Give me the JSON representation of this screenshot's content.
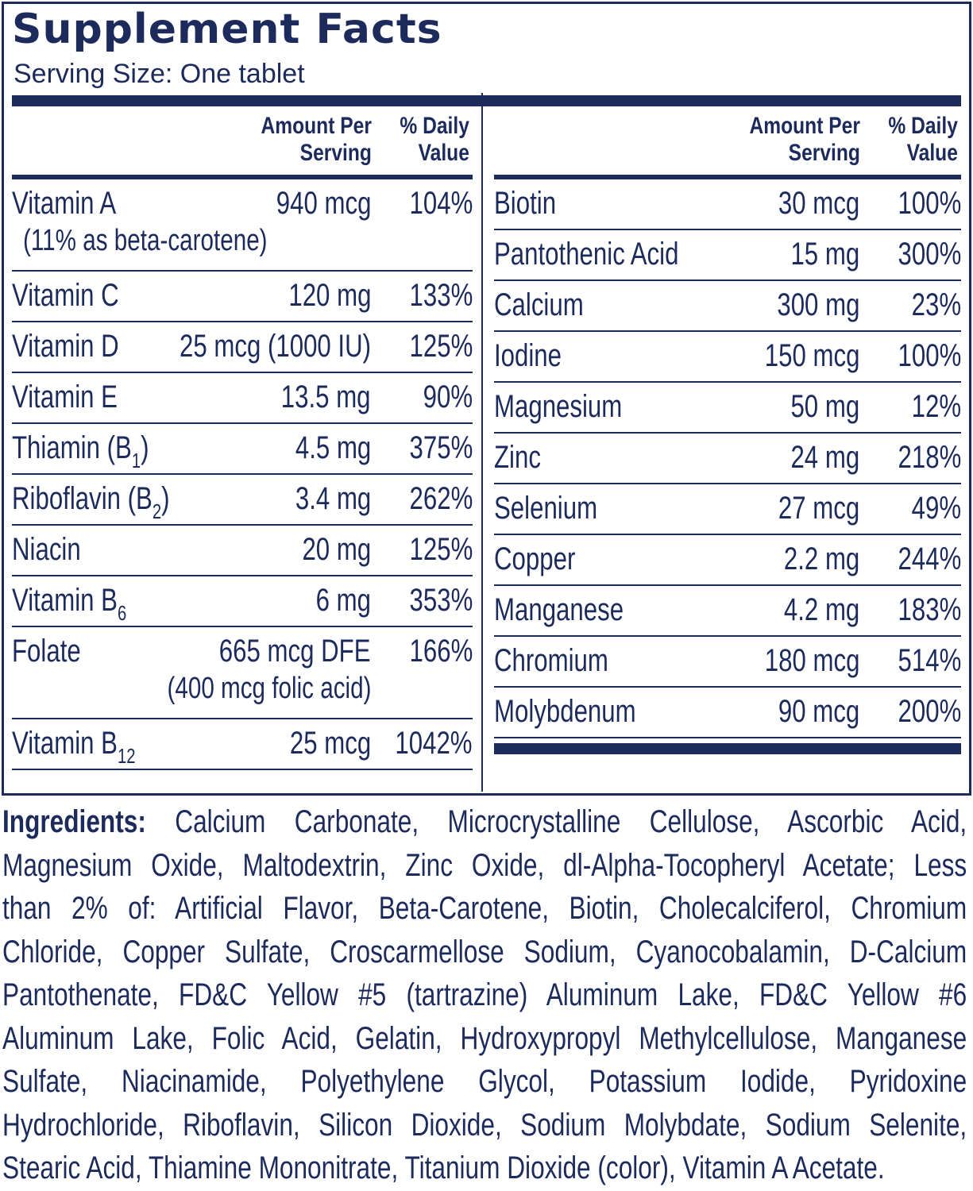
{
  "title": "Supplement Facts",
  "serving_size": "Serving Size:  One tablet",
  "headers": {
    "amount_line1": "Amount Per",
    "amount_line2": "Serving",
    "dv_line1": "% Daily",
    "dv_line2": "Value"
  },
  "left_rows": [
    {
      "name": "Vitamin A",
      "sub": "",
      "amount": "940 mcg",
      "dv": "104%",
      "note": "(11% as beta-carotene)"
    },
    {
      "name": "Vitamin C",
      "sub": "",
      "amount": "120 mg",
      "dv": "133%"
    },
    {
      "name": "Vitamin D",
      "sub": "",
      "amount": "25 mcg (1000 IU)",
      "dv": "125%"
    },
    {
      "name": "Vitamin E",
      "sub": "",
      "amount": "13.5 mg",
      "dv": "90%"
    },
    {
      "name": "Thiamin (B",
      "sub": "1",
      "tail": ")",
      "amount": "4.5 mg",
      "dv": "375%"
    },
    {
      "name": "Riboflavin (B",
      "sub": "2",
      "tail": ")",
      "amount": "3.4 mg",
      "dv": "262%"
    },
    {
      "name": "Niacin",
      "sub": "",
      "amount": "20 mg",
      "dv": "125%"
    },
    {
      "name": "Vitamin B",
      "sub": "6",
      "amount": "6 mg",
      "dv": "353%"
    },
    {
      "name": "Folate",
      "sub": "",
      "amount": "665 mcg DFE",
      "dv": "166%",
      "note": "(400 mcg folic acid)"
    },
    {
      "name": "Vitamin B",
      "sub": "12",
      "amount": "25 mcg",
      "dv": "1042%"
    }
  ],
  "right_rows": [
    {
      "name": "Biotin",
      "amount": "30 mcg",
      "dv": "100%"
    },
    {
      "name": "Pantothenic Acid",
      "amount": "15 mg",
      "dv": "300%"
    },
    {
      "name": "Calcium",
      "amount": "300 mg",
      "dv": "23%"
    },
    {
      "name": "Iodine",
      "amount": "150 mcg",
      "dv": "100%"
    },
    {
      "name": "Magnesium",
      "amount": "50 mg",
      "dv": "12%"
    },
    {
      "name": "Zinc",
      "amount": "24 mg",
      "dv": "218%"
    },
    {
      "name": "Selenium",
      "amount": "27 mcg",
      "dv": "49%"
    },
    {
      "name": "Copper",
      "amount": "2.2 mg",
      "dv": "244%"
    },
    {
      "name": "Manganese",
      "amount": "4.2 mg",
      "dv": "183%"
    },
    {
      "name": "Chromium",
      "amount": "180 mcg",
      "dv": "514%"
    },
    {
      "name": "Molybdenum",
      "amount": "90 mcg",
      "dv": "200%"
    }
  ],
  "ingredients": {
    "label": "Ingredients:",
    "lines": [
      "Calcium Carbonate, Microcrystalline Cellulose, Ascorbic Acid,",
      "Magnesium Oxide, Maltodextrin, Zinc Oxide, dl-Alpha-Tocopheryl Acetate; Less",
      "than 2% of: Artificial Flavor, Beta-Carotene, Biotin, Cholecalciferol, Chromium",
      "Chloride, Copper Sulfate, Croscarmellose Sodium, Cyanocobalamin, D-Calcium",
      "Pantothenate, FD&C Yellow #5 (tartrazine) Aluminum Lake, FD&C Yellow #6",
      "Aluminum Lake, Folic Acid, Gelatin, Hydroxypropyl Methylcellulose, Manganese",
      "Sulfate, Niacinamide, Polyethylene Glycol, Potassium Iodide, Pyridoxine",
      "Hydrochloride, Riboflavin, Silicon Dioxide, Sodium Molybdate, Sodium Selenite,",
      "Stearic Acid, Thiamine Mononitrate, Titanium Dioxide (color), Vitamin A Acetate."
    ]
  }
}
